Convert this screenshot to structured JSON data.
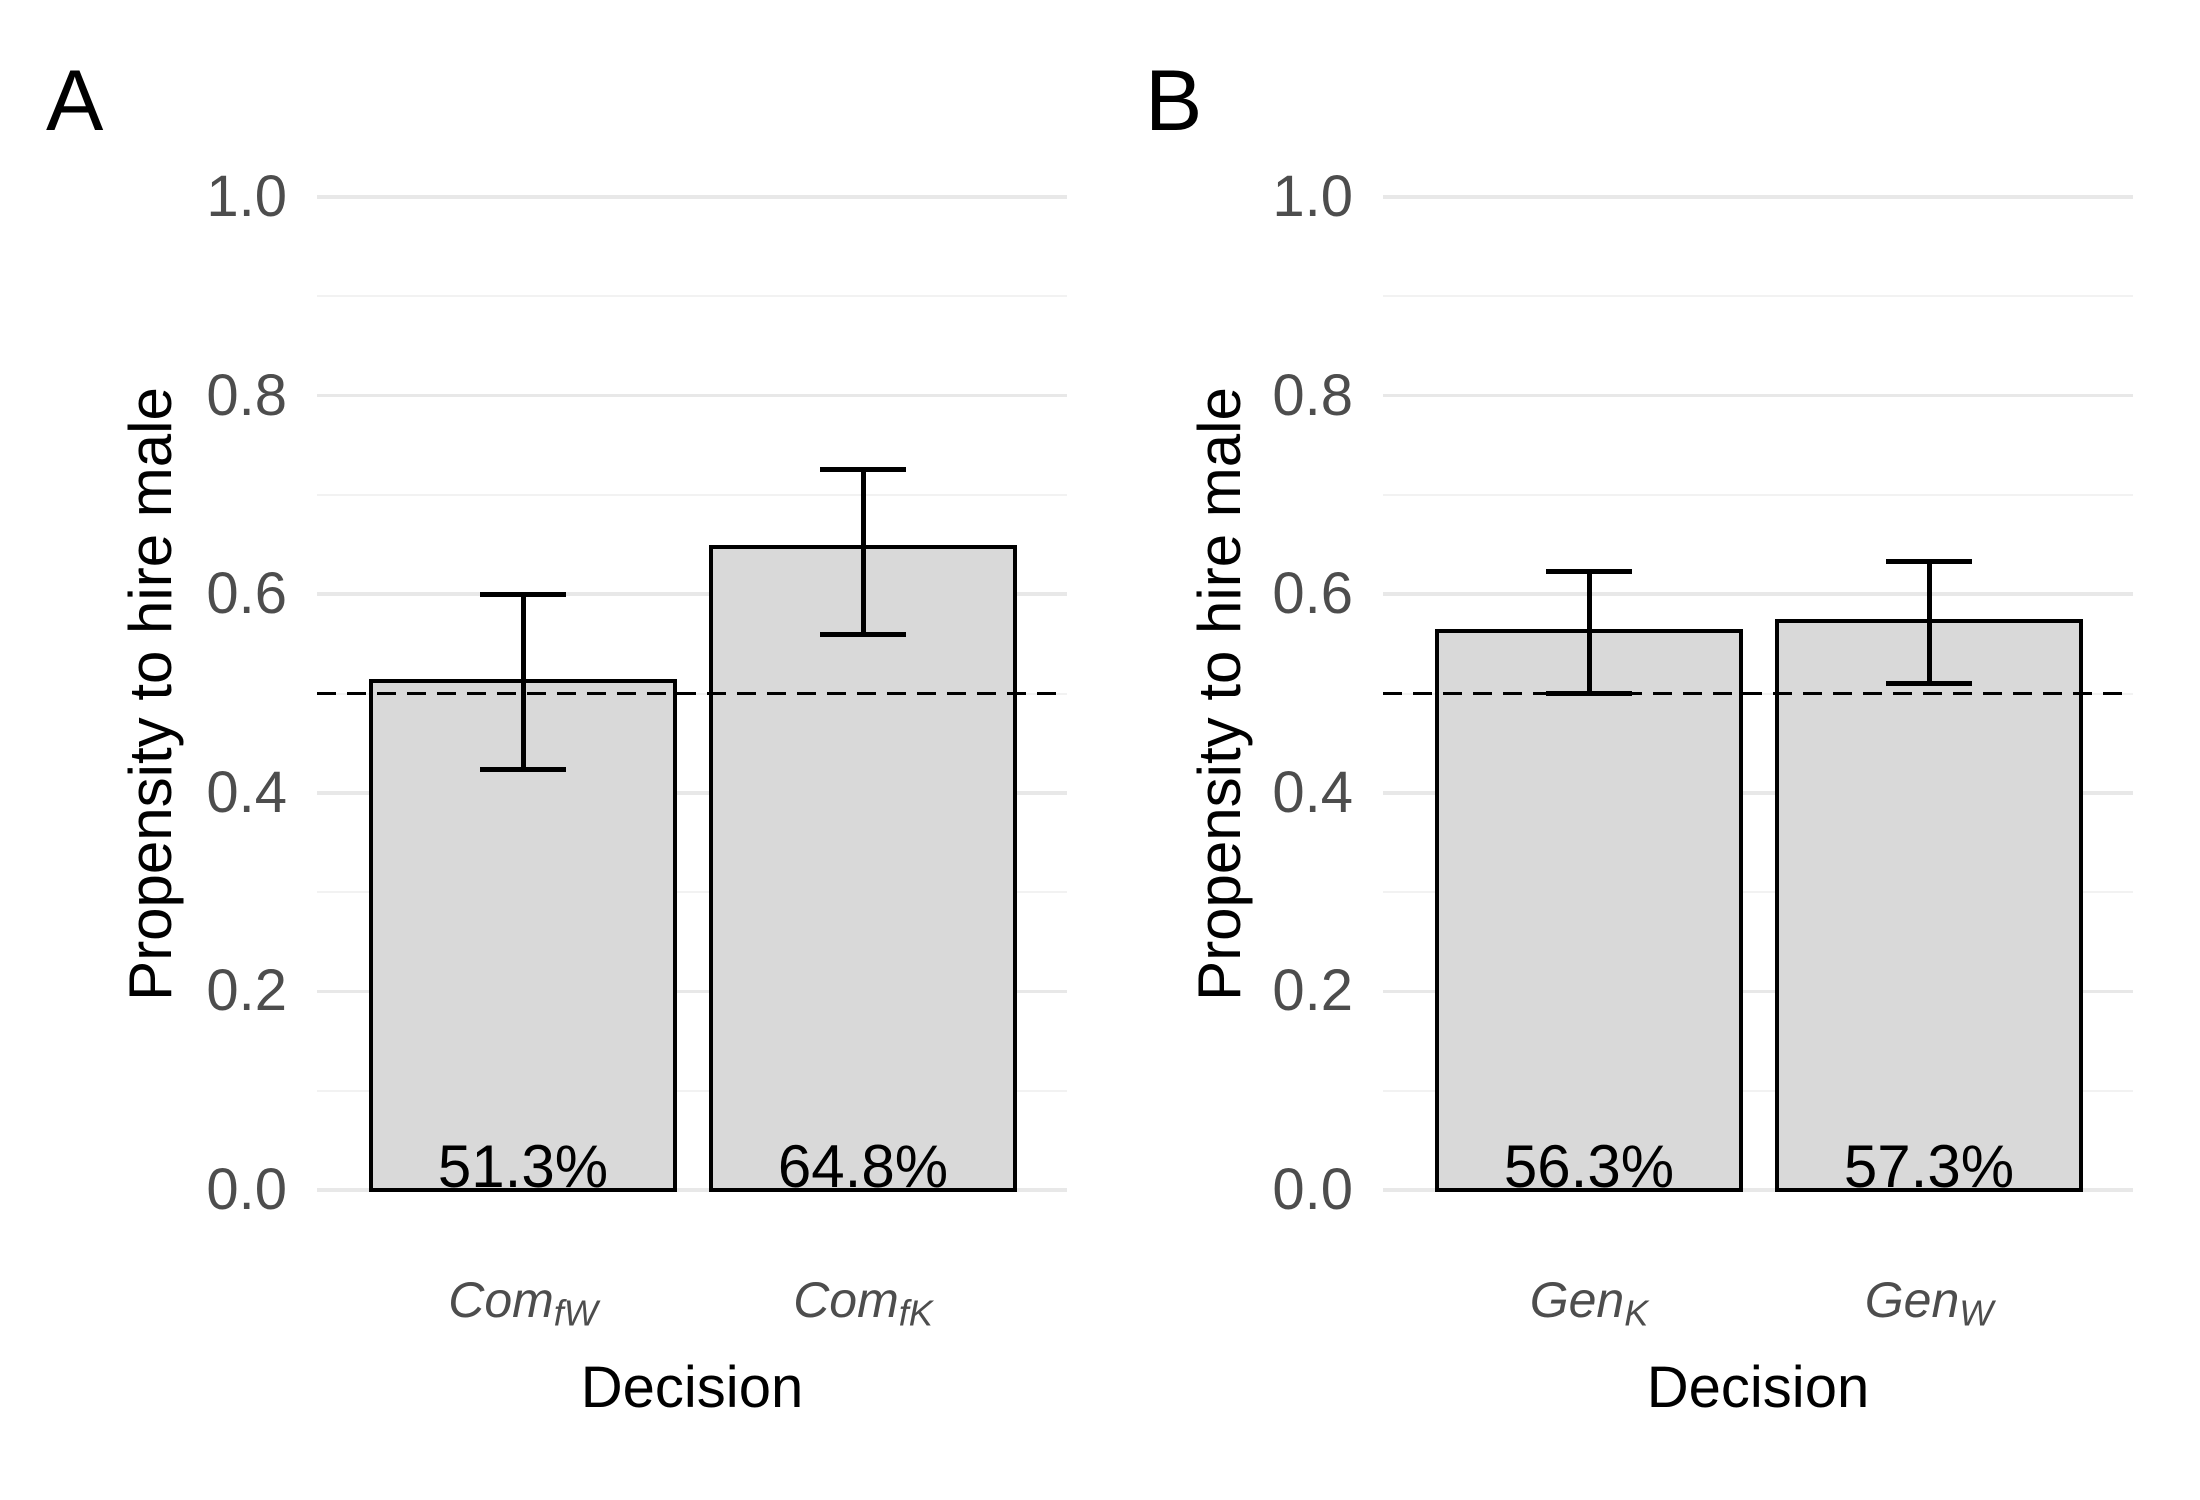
{
  "figure": {
    "background": "#ffffff",
    "panel_count": 2
  },
  "colors": {
    "bar_fill": "#d9d9d9",
    "bar_border": "#000000",
    "grid_major": "#e8e8e8",
    "grid_minor": "#f2f2f2",
    "axis_text": "#4d4d4d",
    "title_text": "#000000",
    "reference_line": "#000000",
    "error_bar": "#000000",
    "value_label": "#000000"
  },
  "chart_data": [
    {
      "type": "bar",
      "panel_label": "A",
      "title": "",
      "xlabel": "Decision",
      "ylabel": "Propensity to hire male",
      "ylim": [
        0.0,
        1.0
      ],
      "y_major_ticks": [
        "0.0",
        "0.2",
        "0.4",
        "0.6",
        "0.8",
        "1.0"
      ],
      "y_minor_ticks": [
        0.1,
        0.3,
        0.5,
        0.7,
        0.9
      ],
      "grid": "horizontal major+minor",
      "legend": "none",
      "reference_line_y": 0.5,
      "reference_line_style": "dashed",
      "categories": [
        {
          "key": "ComfW",
          "main": "Com",
          "sub": "fW"
        },
        {
          "key": "ComfK",
          "main": "Com",
          "sub": "fK"
        }
      ],
      "values": [
        0.513,
        0.648
      ],
      "value_labels": [
        "51.3%",
        "64.8%"
      ],
      "error_low": [
        0.423,
        0.559
      ],
      "error_high": [
        0.6,
        0.726
      ]
    },
    {
      "type": "bar",
      "panel_label": "B",
      "title": "",
      "xlabel": "Decision",
      "ylabel": "Propensity to hire male",
      "ylim": [
        0.0,
        1.0
      ],
      "y_major_ticks": [
        "0.0",
        "0.2",
        "0.4",
        "0.6",
        "0.8",
        "1.0"
      ],
      "y_minor_ticks": [
        0.1,
        0.3,
        0.5,
        0.7,
        0.9
      ],
      "grid": "horizontal major+minor",
      "legend": "none",
      "reference_line_y": 0.5,
      "reference_line_style": "dashed",
      "categories": [
        {
          "key": "GenK",
          "main": "Gen",
          "sub": "K"
        },
        {
          "key": "GenW",
          "main": "Gen",
          "sub": "W"
        }
      ],
      "values": [
        0.563,
        0.573
      ],
      "value_labels": [
        "56.3%",
        "57.3%"
      ],
      "error_low": [
        0.5,
        0.51
      ],
      "error_high": [
        0.623,
        0.633
      ]
    }
  ]
}
